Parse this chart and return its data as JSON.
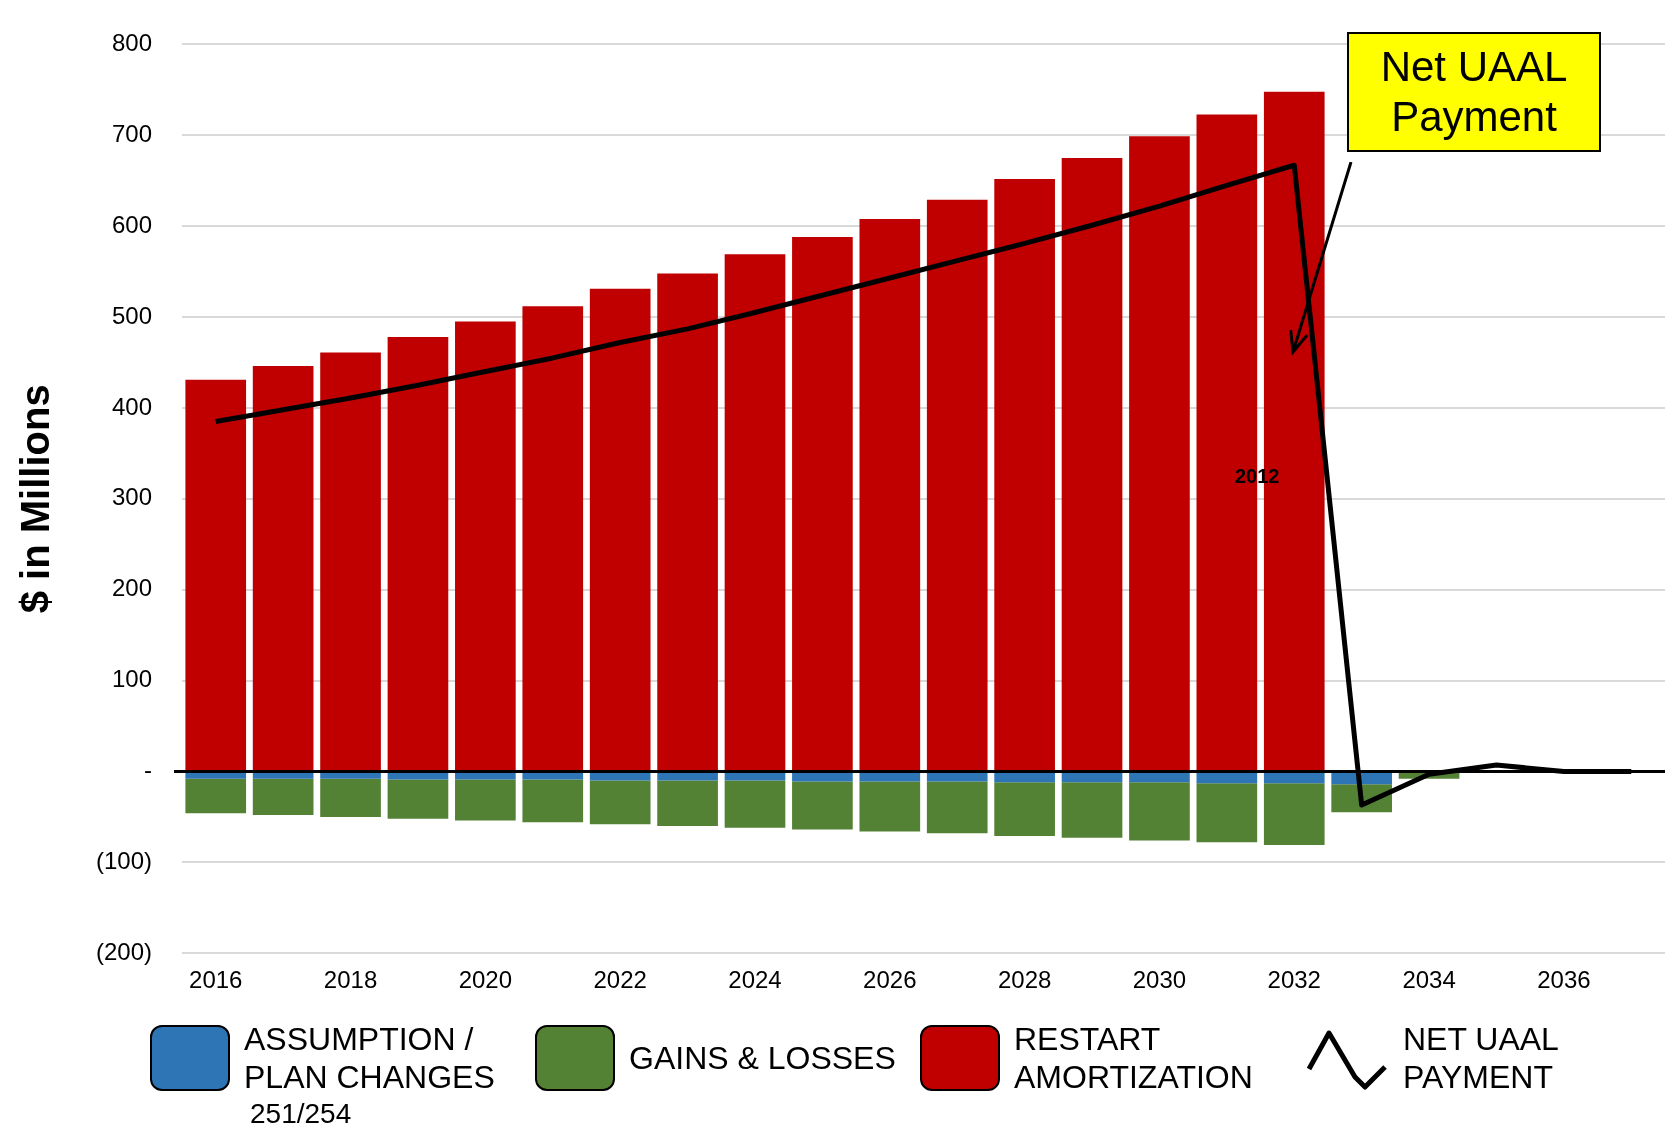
{
  "chart_data": {
    "type": "bar",
    "stacked": true,
    "ylabel": "$ in Millions",
    "categories": [
      "2016",
      null,
      "2018",
      null,
      "2020",
      null,
      "2022",
      null,
      "2024",
      null,
      "2026",
      null,
      "2028",
      null,
      "2030",
      null,
      "2032",
      null,
      "2034",
      null,
      "2036",
      null
    ],
    "series": [
      {
        "name": "ASSUMPTION / PLAN CHANGES",
        "color": "#2e75b6",
        "values": [
          -8,
          -8,
          -8,
          -9,
          -9,
          -9,
          -10,
          -10,
          -10,
          -11,
          -11,
          -11,
          -12,
          -12,
          -12,
          -13,
          -13,
          -14,
          null,
          null,
          null,
          null
        ]
      },
      {
        "name": "GAINS & LOSSES",
        "color": "#548235",
        "values": [
          -38,
          -40,
          -42,
          -43,
          -45,
          -47,
          -48,
          -50,
          -52,
          -53,
          -55,
          -57,
          -59,
          -61,
          -64,
          -65,
          -68,
          -31,
          -8,
          null,
          null,
          null
        ]
      },
      {
        "name": "RESTART AMORTIZATION",
        "color": "#c00000",
        "values": [
          431,
          446,
          461,
          478,
          495,
          512,
          531,
          548,
          569,
          588,
          608,
          629,
          652,
          675,
          699,
          723,
          748,
          null,
          null,
          null,
          null,
          null
        ]
      },
      {
        "name": "NET UAAL PAYMENT",
        "type": "line",
        "color": "#000000",
        "values": [
          385,
          398,
          411,
          425,
          440,
          455,
          472,
          487,
          505,
          524,
          543,
          562,
          581,
          601,
          622,
          645,
          667,
          -37,
          -3,
          7,
          0,
          0
        ]
      }
    ],
    "ylim": [
      -200,
      800
    ],
    "yticks": [
      {
        "value": -200,
        "label": "(200)"
      },
      {
        "value": -100,
        "label": "(100)"
      },
      {
        "value": 0,
        "label": "-"
      },
      100,
      200,
      300,
      400,
      500,
      600,
      700,
      800
    ],
    "grid": "y",
    "legend": "bottom",
    "ref_lines": [
      {
        "axis": "y",
        "value": 0,
        "color": "#000000"
      }
    ],
    "annotations": [
      "Net UAAL Payment",
      "2012",
      "251/254"
    ]
  }
}
